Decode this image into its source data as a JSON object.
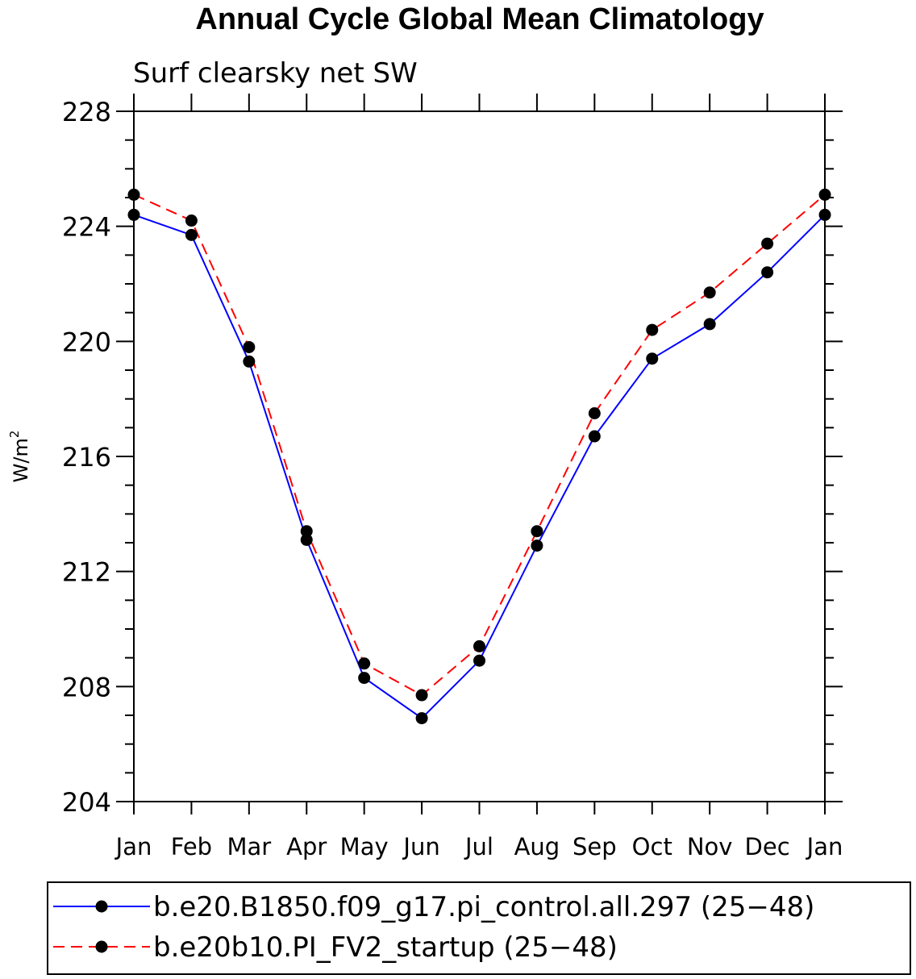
{
  "chart_data": {
    "type": "line",
    "title": "Annual Cycle Global Mean Climatology",
    "subtitle": "Surf clearsky net SW",
    "ylabel": "W/m",
    "ylabel_superscript": "2",
    "xlabel": "",
    "categories": [
      "Jan",
      "Feb",
      "Mar",
      "Apr",
      "May",
      "Jun",
      "Jul",
      "Aug",
      "Sep",
      "Oct",
      "Nov",
      "Dec",
      "Jan"
    ],
    "ylim": [
      204,
      228
    ],
    "yticks": [
      204,
      208,
      212,
      216,
      220,
      224,
      228
    ],
    "ytick_labels": [
      "204",
      "208",
      "212",
      "216",
      "220",
      "224",
      "228"
    ],
    "legend_position": "bottom",
    "series": [
      {
        "name": "b.e20.B1850.f09_g17.pi_control.all.297 (25−48)",
        "color": "#0000ff",
        "line_style": "solid",
        "values": [
          224.4,
          223.7,
          219.3,
          213.1,
          208.3,
          206.9,
          208.9,
          212.9,
          216.7,
          219.4,
          220.6,
          222.4,
          224.4
        ]
      },
      {
        "name": "b.e20b10.PI_FV2_startup (25−48)",
        "color": "#ff0000",
        "line_style": "dashed",
        "values": [
          225.1,
          224.2,
          219.8,
          213.4,
          208.8,
          207.7,
          209.4,
          213.4,
          217.5,
          220.4,
          221.7,
          223.4,
          225.1
        ]
      }
    ]
  }
}
